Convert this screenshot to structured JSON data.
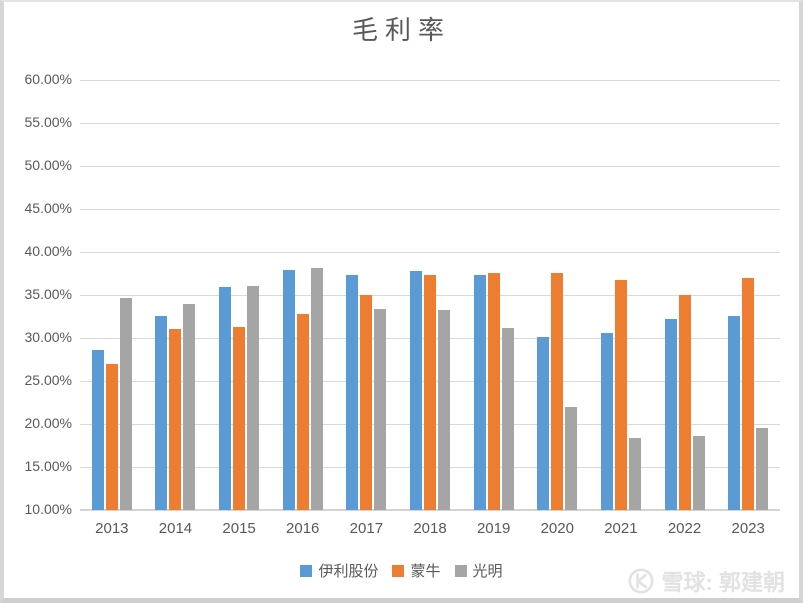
{
  "frame": {
    "background": "#ffffff",
    "border_color": "#d6d6d6"
  },
  "watermark": {
    "logo_icon": "xueqiu-snowball-icon",
    "text": "雪球: 郭建朝",
    "color": "#e2e2e2"
  },
  "chart_data": {
    "type": "bar",
    "title": "毛利率",
    "categories": [
      "2013",
      "2014",
      "2015",
      "2016",
      "2017",
      "2018",
      "2019",
      "2020",
      "2021",
      "2022",
      "2023"
    ],
    "series": [
      {
        "name": "伊利股份",
        "color": "#5B9BD5",
        "values": [
          28.6,
          32.6,
          35.9,
          37.9,
          37.3,
          37.8,
          37.3,
          30.1,
          30.6,
          32.2,
          32.6
        ]
      },
      {
        "name": "蒙牛",
        "color": "#ED7D31",
        "values": [
          27.0,
          31.0,
          31.3,
          32.8,
          35.0,
          37.3,
          37.6,
          37.6,
          36.7,
          35.0,
          37.0
        ]
      },
      {
        "name": "光明",
        "color": "#A5A5A5",
        "values": [
          34.7,
          34.0,
          36.1,
          38.1,
          33.4,
          33.3,
          31.2,
          22.0,
          18.4,
          18.6,
          19.5
        ]
      }
    ],
    "xlabel": "",
    "ylabel": "",
    "y_axis": {
      "min": 10,
      "max": 60,
      "step": 5,
      "tick_labels": [
        "60.00%",
        "55.00%",
        "50.00%",
        "45.00%",
        "40.00%",
        "35.00%",
        "30.00%",
        "25.00%",
        "20.00%",
        "15.00%",
        "10.00%"
      ]
    },
    "grid": true,
    "gridline_color": "#d9d9d9",
    "legend_position": "bottom",
    "title_color": "#595959",
    "tick_label_color": "#595959"
  }
}
